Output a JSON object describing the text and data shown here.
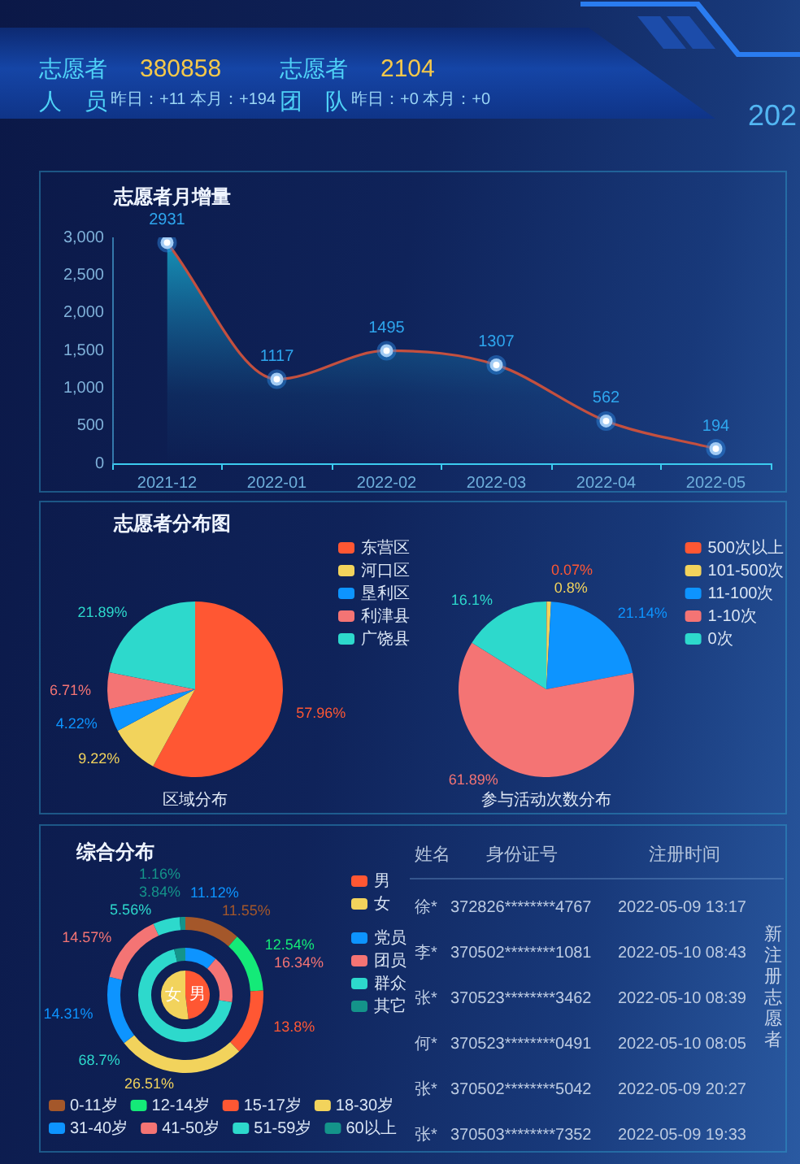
{
  "chart_data": [
    {
      "type": "other",
      "annotations": [
        "志愿者人员",
        "380858",
        "昨日：+11 本月：+194",
        "志愿者团队",
        "2104",
        "昨日：+0 本月：+0",
        "202"
      ]
    },
    {
      "type": "area",
      "title": "志愿者月增量",
      "categories": [
        "2021-12",
        "2022-01",
        "2022-02",
        "2022-03",
        "2022-04",
        "2022-05"
      ],
      "values": [
        2931,
        1117,
        1495,
        1307,
        562,
        194
      ],
      "color": "#c4503f",
      "ylim": [
        0,
        3000
      ],
      "yticks": [
        0,
        500,
        {
          "value": 1000,
          "label": "1,000"
        },
        {
          "value": 1500,
          "label": "1,500"
        },
        {
          "value": 2000,
          "label": "2,000"
        },
        {
          "value": 2500,
          "label": "2,500"
        },
        {
          "value": 3000,
          "label": "3,000"
        }
      ],
      "data_labels": true,
      "marker": "circle"
    },
    {
      "type": "pie",
      "title": "志愿者分布图",
      "categories": [
        "东营区",
        "河口区",
        "垦利区",
        "利津县",
        "广饶县"
      ],
      "values": [
        57.96,
        9.22,
        4.22,
        6.71,
        21.89
      ],
      "colors": [
        "#ff5733",
        "#f2d35c",
        "#0d94ff",
        "#f47474",
        "#2dd9cc"
      ],
      "value_labels": [
        "57.96%",
        "9.22%",
        "4.22%",
        "6.71%",
        "21.89%"
      ],
      "legend": "top right",
      "annotations": [
        "区域分布"
      ]
    },
    {
      "type": "pie",
      "categories": [
        "500次以上",
        "101-500次",
        "11-100次",
        "1-10次",
        "0次"
      ],
      "values": [
        0.07,
        0.8,
        21.14,
        61.89,
        16.1
      ],
      "colors": [
        "#ff5733",
        "#f2d35c",
        "#0d94ff",
        "#f47474",
        "#2dd9cc"
      ],
      "value_labels": [
        "0.07%",
        "0.8%",
        "21.14%",
        "61.89%",
        "16.1%"
      ],
      "legend": "top right",
      "annotations": [
        "参与活动次数分布"
      ]
    },
    {
      "type": "donut",
      "title": "综合分布",
      "categories": [
        "0-11岁",
        "12-14岁",
        "15-17岁",
        "18-30岁",
        "31-40岁",
        "41-50岁",
        "51-59岁",
        "60以上"
      ],
      "values": [
        11.55,
        12.54,
        13.8,
        26.51,
        14.31,
        14.57,
        5.56,
        1.16
      ],
      "colors": [
        "#a4572a",
        "#14ea78",
        "#ff5733",
        "#f2d35c",
        "#0d94ff",
        "#f47474",
        "#2dd9cc",
        "#14948a"
      ],
      "value_labels": [
        "11.55%",
        "12.54%",
        "13.8%",
        "26.51%",
        "14.31%",
        "14.57%",
        "5.56%",
        "1.16%"
      ],
      "legend": "bottom"
    },
    {
      "type": "donut",
      "categories": [
        "党员",
        "团员",
        "群众",
        "其它"
      ],
      "values": [
        11.12,
        16.34,
        68.7,
        3.84
      ],
      "colors": [
        "#0d94ff",
        "#f47474",
        "#2dd9cc",
        "#14948a"
      ],
      "value_labels": [
        "11.12%",
        "16.34%",
        "68.7%",
        "3.84%"
      ],
      "legend": "right"
    },
    {
      "type": "pie",
      "categories": [
        "男",
        "女"
      ],
      "values": [
        48,
        52
      ],
      "colors": [
        "#ff5733",
        "#f2d35c"
      ],
      "legend": "right"
    },
    {
      "type": "other",
      "title": "新注册志愿者",
      "annotations": [
        "姓名",
        "身份证号",
        "注册时间",
        "徐*",
        "372826********4767",
        "2022-05-09 13:17",
        "李*",
        "370502********1081",
        "2022-05-10 08:43",
        "张*",
        "370523********3462",
        "2022-05-10 08:39",
        "何*",
        "370523********0491",
        "2022-05-10 08:05",
        "张*",
        "370502********5042",
        "2022-05-09 20:27",
        "张*",
        "370503********7352",
        "2022-05-09 19:33"
      ]
    }
  ]
}
